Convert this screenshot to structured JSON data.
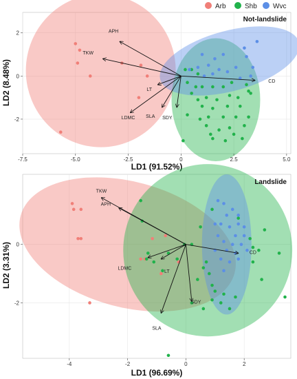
{
  "legend": {
    "items": [
      {
        "label": "Arb",
        "color": "#F07F78"
      },
      {
        "label": "Shb",
        "color": "#21B24B"
      },
      {
        "label": "Wvc",
        "color": "#5C8FE6"
      }
    ]
  },
  "chart_data": [
    {
      "type": "scatter",
      "title": "Not-landslide",
      "xlabel": "LD1 (91.52%)",
      "ylabel": "LD2 (8.48%)",
      "xlim": [
        -7.5,
        5.2
      ],
      "ylim": [
        -3.6,
        2.95
      ],
      "xticks": [
        "-7.5",
        "-5.0",
        "-2.5",
        "0",
        "2.5",
        "5.0"
      ],
      "xtick_values": [
        -7.5,
        -5.0,
        -2.5,
        0,
        2.5,
        5.0
      ],
      "yticks": [
        "-2",
        "0",
        "2"
      ],
      "ytick_values": [
        -2,
        0,
        2
      ],
      "grid": true,
      "series": [
        {
          "name": "Arb",
          "color": "#F07F78",
          "points": [
            [
              -5.0,
              1.5
            ],
            [
              -4.8,
              1.2
            ],
            [
              -4.9,
              0.6
            ],
            [
              -4.3,
              0.0
            ],
            [
              -2.8,
              0.6
            ],
            [
              -1.9,
              0.5
            ],
            [
              -1.6,
              0.0
            ],
            [
              -2.0,
              -1.0
            ],
            [
              -5.7,
              -2.6
            ]
          ]
        },
        {
          "name": "Shb",
          "color": "#21B24B",
          "points": [
            [
              0.2,
              0.3
            ],
            [
              0.5,
              0.3
            ],
            [
              0.8,
              0.1
            ],
            [
              0.3,
              -0.3
            ],
            [
              0.7,
              -0.5
            ],
            [
              1.0,
              -0.5
            ],
            [
              1.5,
              -0.5
            ],
            [
              2.0,
              -0.5
            ],
            [
              2.4,
              -0.3
            ],
            [
              3.1,
              -0.4
            ],
            [
              3.2,
              -0.7
            ],
            [
              3.3,
              -0.8
            ],
            [
              0.5,
              -0.8
            ],
            [
              0.8,
              -1.1
            ],
            [
              1.2,
              -1.0
            ],
            [
              1.7,
              -1.1
            ],
            [
              2.3,
              -0.9
            ],
            [
              2.7,
              -1.0
            ],
            [
              1.0,
              -1.4
            ],
            [
              1.5,
              -1.5
            ],
            [
              2.2,
              -1.4
            ],
            [
              2.8,
              -1.4
            ],
            [
              0.3,
              -1.8
            ],
            [
              0.9,
              -2.0
            ],
            [
              1.3,
              -1.9
            ],
            [
              2.0,
              -1.9
            ],
            [
              2.6,
              -1.9
            ],
            [
              1.2,
              -2.3
            ],
            [
              1.8,
              -2.5
            ],
            [
              2.3,
              -2.4
            ],
            [
              2.5,
              -2.7
            ],
            [
              1.5,
              -2.9
            ],
            [
              2.1,
              -3.0
            ],
            [
              2.9,
              -2.9
            ],
            [
              3.0,
              -2.3
            ],
            [
              0.1,
              -3.0
            ],
            [
              3.2,
              -1.9
            ],
            [
              1.4,
              -2.7
            ]
          ]
        },
        {
          "name": "Wvc",
          "color": "#5C8FE6",
          "points": [
            [
              0.4,
              0.3
            ],
            [
              0.8,
              0.4
            ],
            [
              1.3,
              0.5
            ],
            [
              1.8,
              0.3
            ],
            [
              2.2,
              0.2
            ],
            [
              2.6,
              0.4
            ],
            [
              1.6,
              0.8
            ],
            [
              2.0,
              1.0
            ],
            [
              3.1,
              0.9
            ],
            [
              3.6,
              1.6
            ],
            [
              3.0,
              1.3
            ],
            [
              2.8,
              -0.1
            ],
            [
              1.1,
              0.0
            ],
            [
              1.5,
              0.1
            ],
            [
              3.3,
              0.0
            ],
            [
              1.0,
              1.0
            ],
            [
              3.4,
              0.4
            ]
          ]
        }
      ],
      "ellipses": [
        {
          "group": "Arb",
          "center": [
            -3.8,
            0.25
          ],
          "rx": 3.55,
          "ry": 3.55,
          "rotate": 0
        },
        {
          "group": "Shb",
          "center": [
            1.65,
            -1.1
          ],
          "rx": 2.1,
          "ry": 2.85,
          "rotate": 0
        },
        {
          "group": "Wvc",
          "center": [
            2.3,
            0.7
          ],
          "rx": 3.4,
          "ry": 1.4,
          "rotate": -15
        }
      ],
      "vectors": [
        {
          "label": "APH",
          "end": [
            -2.9,
            1.6
          ],
          "label_at": [
            -3.2,
            2.1
          ]
        },
        {
          "label": "TKW",
          "end": [
            -3.7,
            0.8
          ],
          "label_at": [
            -4.4,
            1.1
          ]
        },
        {
          "label": "LT",
          "end": [
            -1.1,
            -0.4
          ],
          "label_at": [
            -1.5,
            -0.6
          ]
        },
        {
          "label": "LDMC",
          "end": [
            -2.4,
            -1.7
          ],
          "label_at": [
            -2.5,
            -1.9
          ]
        },
        {
          "label": "SLA",
          "end": [
            -0.9,
            -1.45
          ],
          "label_at": [
            -1.45,
            -1.85
          ]
        },
        {
          "label": "SDY",
          "end": [
            -0.2,
            -1.45
          ],
          "label_at": [
            -0.65,
            -1.9
          ]
        },
        {
          "label": "CD",
          "end": [
            3.5,
            -0.2
          ],
          "label_at": [
            4.3,
            -0.22
          ]
        }
      ]
    },
    {
      "type": "scatter",
      "title": "Landslide",
      "xlabel": "LD1 (96.69%)",
      "ylabel": "LD2 (3.31%)",
      "xlim": [
        -5.6,
        3.6
      ],
      "ylim": [
        -3.9,
        2.4
      ],
      "xticks": [
        "-4",
        "-2",
        "0",
        "2"
      ],
      "xtick_values": [
        -4,
        -2,
        0,
        2
      ],
      "yticks": [
        "-2",
        "0"
      ],
      "ytick_values": [
        -2,
        0
      ],
      "grid": true,
      "series": [
        {
          "name": "Arb",
          "color": "#F07F78",
          "points": [
            [
              -3.9,
              1.4
            ],
            [
              -3.85,
              1.2
            ],
            [
              -3.6,
              1.2
            ],
            [
              -3.7,
              0.2
            ],
            [
              -3.6,
              0.2
            ],
            [
              -3.3,
              -2.0
            ],
            [
              -1.55,
              -0.5
            ],
            [
              -1.4,
              -0.5
            ],
            [
              -1.15,
              0.2
            ],
            [
              -0.85,
              -1.0
            ],
            [
              -0.7,
              0.3
            ],
            [
              -0.25,
              -0.6
            ]
          ]
        },
        {
          "name": "Shb",
          "color": "#21B24B",
          "points": [
            [
              -1.55,
              1.5
            ],
            [
              -1.5,
              0.8
            ],
            [
              -1.35,
              -0.5
            ],
            [
              -1.3,
              -0.3
            ],
            [
              -1.1,
              -0.6
            ],
            [
              -0.8,
              -0.9
            ],
            [
              -0.6,
              -0.3
            ],
            [
              -0.3,
              -0.5
            ],
            [
              -0.05,
              0.0
            ],
            [
              0.2,
              0.0
            ],
            [
              0.5,
              0.6
            ],
            [
              0.6,
              -0.8
            ],
            [
              0.8,
              -1.0
            ],
            [
              0.9,
              1.2
            ],
            [
              1.0,
              -1.6
            ],
            [
              0.9,
              -1.4
            ],
            [
              0.4,
              -1.2
            ],
            [
              0.7,
              -0.6
            ],
            [
              0.2,
              -2.0
            ],
            [
              0.6,
              -2.2
            ],
            [
              0.9,
              -1.9
            ],
            [
              1.2,
              -2.0
            ],
            [
              1.3,
              -1.7
            ],
            [
              1.5,
              -2.2
            ],
            [
              1.7,
              -1.8
            ],
            [
              1.8,
              0.9
            ],
            [
              2.2,
              0.2
            ],
            [
              2.3,
              -0.1
            ],
            [
              2.5,
              -0.2
            ],
            [
              2.3,
              -0.6
            ],
            [
              2.6,
              -1.2
            ],
            [
              3.4,
              -1.8
            ],
            [
              3.2,
              -0.3
            ],
            [
              2.7,
              0.5
            ],
            [
              -0.6,
              -3.8
            ]
          ]
        },
        {
          "name": "Wvc",
          "color": "#5C8FE6",
          "points": [
            [
              1.1,
              1.5
            ],
            [
              1.3,
              1.4
            ],
            [
              1.4,
              1.0
            ],
            [
              1.6,
              1.2
            ],
            [
              1.8,
              1.0
            ],
            [
              1.2,
              0.7
            ],
            [
              1.5,
              0.6
            ],
            [
              1.8,
              0.7
            ],
            [
              2.0,
              0.3
            ],
            [
              1.1,
              0.3
            ],
            [
              1.3,
              0.1
            ],
            [
              1.6,
              0.0
            ],
            [
              1.9,
              0.0
            ],
            [
              1.0,
              -0.2
            ],
            [
              1.4,
              -0.2
            ],
            [
              1.7,
              -0.3
            ],
            [
              1.2,
              -0.5
            ],
            [
              1.5,
              -0.6
            ],
            [
              1.3,
              -0.9
            ],
            [
              1.8,
              -0.5
            ],
            [
              2.1,
              -0.2
            ],
            [
              1.0,
              0.7
            ],
            [
              1.7,
              0.3
            ],
            [
              2.0,
              0.6
            ]
          ]
        }
      ],
      "ellipses": [
        {
          "group": "Arb",
          "center": [
            -2.0,
            0.0
          ],
          "rx": 3.8,
          "ry": 2.15,
          "rotate": 15
        },
        {
          "group": "Shb",
          "center": [
            0.75,
            -0.2
          ],
          "rx": 2.9,
          "ry": 2.95,
          "rotate": 0
        },
        {
          "group": "Wvc",
          "center": [
            1.4,
            0.0
          ],
          "rx": 0.85,
          "ry": 2.4,
          "rotate": 0
        }
      ],
      "vectors": [
        {
          "label": "TKW",
          "end": [
            -2.9,
            1.6
          ],
          "label_at": [
            -2.9,
            1.85
          ]
        },
        {
          "label": "APH",
          "end": [
            -2.3,
            1.25
          ],
          "label_at": [
            -2.75,
            1.4
          ]
        },
        {
          "label": "LDMC",
          "end": [
            -1.3,
            -0.45
          ],
          "label_at": [
            -2.1,
            -0.8
          ]
        },
        {
          "label": "LT",
          "end": [
            -0.85,
            -0.5
          ],
          "label_at": [
            -0.65,
            -0.9
          ]
        },
        {
          "label": "SLA",
          "end": [
            -0.85,
            -2.35
          ],
          "label_at": [
            -1.0,
            -2.85
          ]
        },
        {
          "label": "SDY",
          "end": [
            0.2,
            -1.95
          ],
          "label_at": [
            0.35,
            -1.95
          ]
        },
        {
          "label": "CD",
          "end": [
            1.8,
            -0.3
          ],
          "label_at": [
            2.3,
            -0.25
          ]
        }
      ]
    }
  ]
}
